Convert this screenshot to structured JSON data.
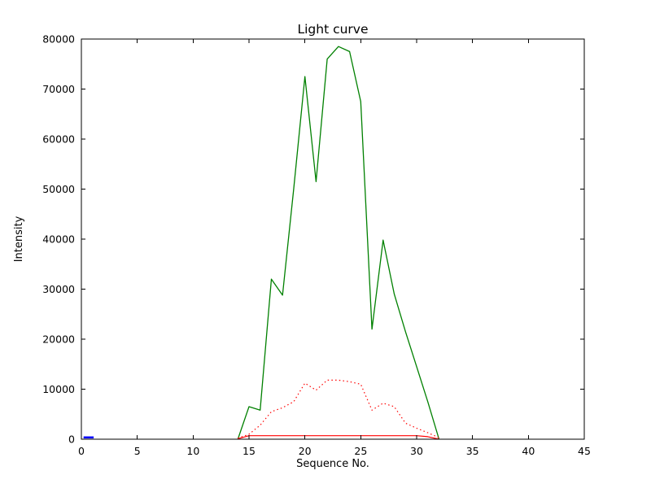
{
  "figure": {
    "background_color": "#ffffff",
    "axes_edge_color": "#000000"
  },
  "chart_data": {
    "type": "line",
    "title": "Light curve",
    "xlabel": "Sequence No.",
    "ylabel": "Intensity",
    "xlim": [
      0,
      45
    ],
    "ylim": [
      0,
      80000
    ],
    "xticks": [
      0,
      5,
      10,
      15,
      20,
      25,
      30,
      35,
      40,
      45
    ],
    "yticks": [
      0,
      10000,
      20000,
      30000,
      40000,
      50000,
      60000,
      70000,
      80000
    ],
    "grid": false,
    "legend": "none",
    "series": [
      {
        "name": "green-solid-line",
        "color": "#008000",
        "style": "solid",
        "width": 1.3,
        "x": [
          14,
          15,
          16,
          17,
          18,
          19,
          20,
          21,
          22,
          23,
          24,
          25,
          26,
          27,
          28,
          29,
          30,
          31,
          32
        ],
        "y": [
          0,
          6500,
          5800,
          32000,
          28800,
          50000,
          72500,
          51500,
          76000,
          78500,
          77500,
          67500,
          22000,
          39800,
          29000,
          21500,
          14500,
          7500,
          0
        ]
      },
      {
        "name": "red-dotted-line",
        "color": "#ff0000",
        "style": "dotted",
        "width": 1.2,
        "x": [
          14,
          15,
          16,
          17,
          18,
          19,
          20,
          21,
          22,
          23,
          24,
          25,
          26,
          27,
          28,
          29,
          30,
          31,
          32
        ],
        "y": [
          200,
          1000,
          2800,
          5500,
          6300,
          7500,
          11200,
          9800,
          11800,
          11800,
          11500,
          11000,
          5800,
          7200,
          6500,
          3200,
          2200,
          1300,
          300
        ]
      },
      {
        "name": "red-solid-line",
        "color": "#ff0000",
        "style": "solid",
        "width": 1.2,
        "x": [
          14,
          15,
          30,
          31,
          32
        ],
        "y": [
          100,
          700,
          700,
          500,
          0
        ]
      },
      {
        "name": "blue-solid-segment",
        "color": "#0000ff",
        "style": "solid",
        "width": 2.5,
        "x": [
          0.2,
          1.1
        ],
        "y": [
          350,
          350
        ]
      }
    ]
  }
}
